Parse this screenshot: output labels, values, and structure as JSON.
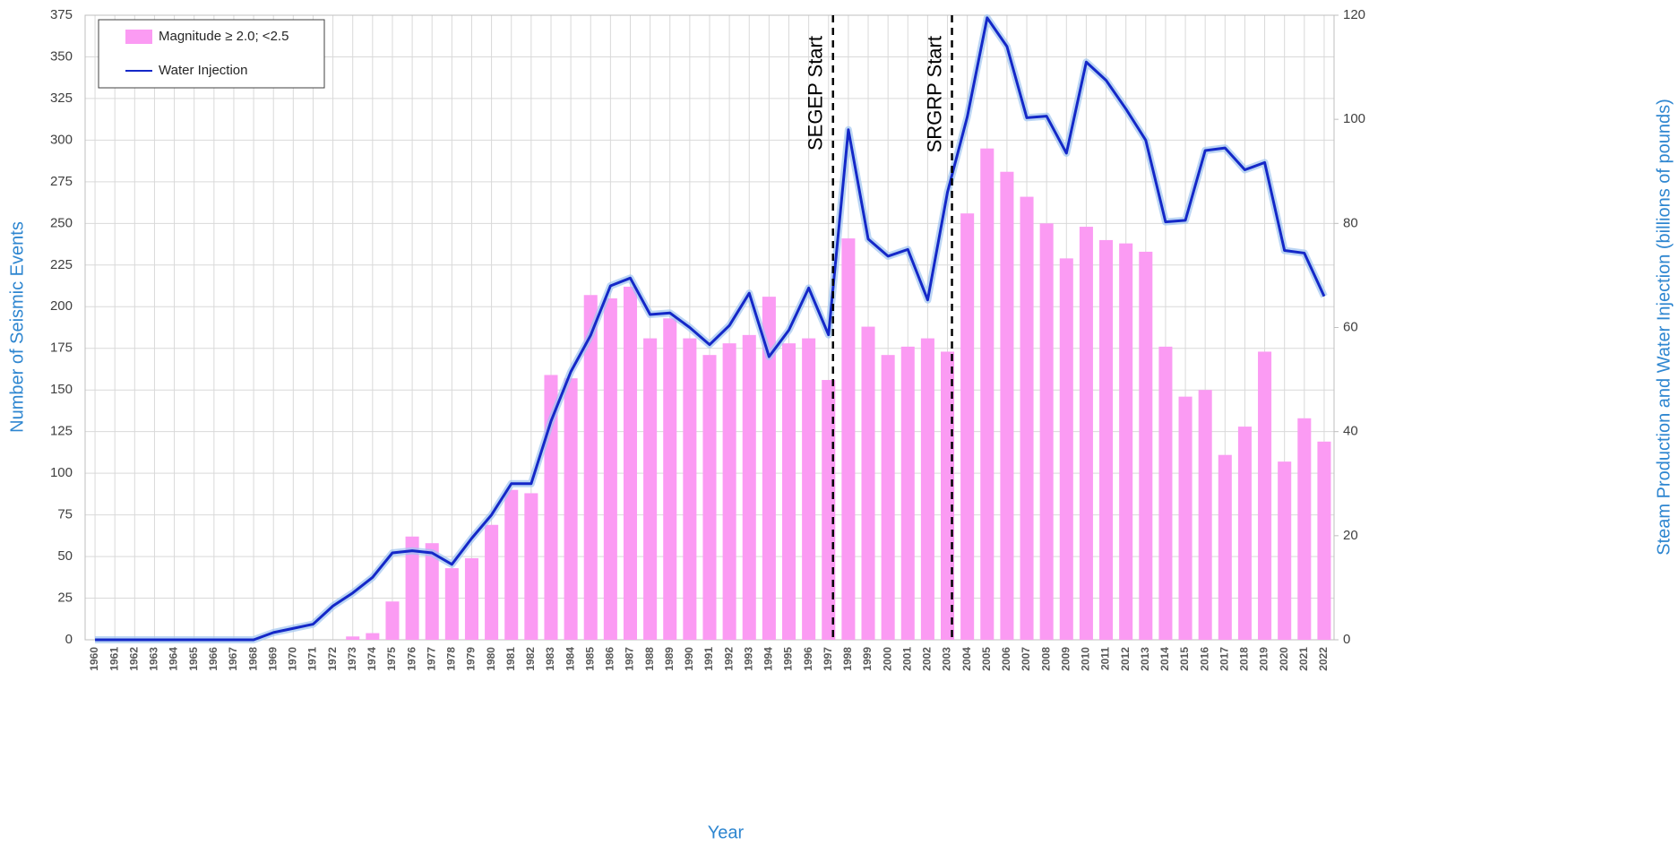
{
  "chart_data": {
    "type": "bar",
    "xlabel": "Year",
    "ylabel": "Number of Seismic Events",
    "y2label": "Steam Production and Water Injection (billions of pounds)",
    "categories": [
      "1960",
      "1961",
      "1962",
      "1963",
      "1964",
      "1965",
      "1966",
      "1967",
      "1968",
      "1969",
      "1970",
      "1971",
      "1972",
      "1973",
      "1974",
      "1975",
      "1976",
      "1977",
      "1978",
      "1979",
      "1980",
      "1981",
      "1982",
      "1983",
      "1984",
      "1985",
      "1986",
      "1987",
      "1988",
      "1989",
      "1990",
      "1991",
      "1992",
      "1993",
      "1994",
      "1995",
      "1996",
      "1997",
      "1998",
      "1999",
      "2000",
      "2001",
      "2002",
      "2003",
      "2004",
      "2005",
      "2006",
      "2007",
      "2008",
      "2009",
      "2010",
      "2011",
      "2012",
      "2013",
      "2014",
      "2015",
      "2016",
      "2017",
      "2018",
      "2019",
      "2020",
      "2021",
      "2022"
    ],
    "series": [
      {
        "name": "Magnitude ≥ 2.0; <2.5",
        "type": "bar",
        "color": "#fb9bf3",
        "values": [
          0,
          0,
          0,
          0,
          0,
          0,
          0,
          0,
          0,
          0,
          0,
          0,
          0,
          2,
          4,
          23,
          62,
          58,
          43,
          49,
          69,
          90,
          88,
          159,
          157,
          207,
          205,
          212,
          181,
          193,
          181,
          171,
          178,
          183,
          206,
          178,
          181,
          156,
          241,
          188,
          171,
          176,
          181,
          173,
          256,
          295,
          281,
          266,
          250,
          229,
          248,
          240,
          238,
          233,
          176,
          146,
          150,
          111,
          128,
          173,
          107,
          133,
          119
        ]
      },
      {
        "name": "Water Injection",
        "type": "line",
        "axis": "y2",
        "color": "#1428c8",
        "values": [
          0,
          0,
          0,
          0,
          0,
          0,
          0,
          0,
          0,
          1.4,
          2.2,
          3,
          6.5,
          9,
          12,
          16.7,
          17.1,
          16.7,
          14.5,
          19.5,
          24,
          30,
          30,
          42,
          51.5,
          58.5,
          68,
          69.5,
          62.5,
          62.8,
          60,
          56.7,
          60.4,
          66.6,
          54.4,
          59.5,
          67.6,
          58.6,
          98,
          77,
          73.7,
          75,
          65.3,
          86,
          100.5,
          119.5,
          114,
          100.3,
          100.6,
          93.5,
          111,
          107.5,
          102,
          96,
          80.3,
          80.6,
          94,
          94.5,
          90.3,
          91.7,
          74.8,
          74.3,
          66
        ]
      }
    ],
    "ylim": [
      0,
      375
    ],
    "yticks": [
      0,
      25,
      50,
      75,
      100,
      125,
      150,
      175,
      200,
      225,
      250,
      275,
      300,
      325,
      350,
      375
    ],
    "y2lim": [
      0,
      120
    ],
    "y2ticks": [
      0,
      20,
      40,
      60,
      80,
      100,
      120
    ],
    "grid": true,
    "legend": "upper left",
    "annotations": [
      {
        "text": "SEGEP Start",
        "category": "1997"
      },
      {
        "text": "SRGRP Start",
        "category": "2003"
      }
    ]
  }
}
